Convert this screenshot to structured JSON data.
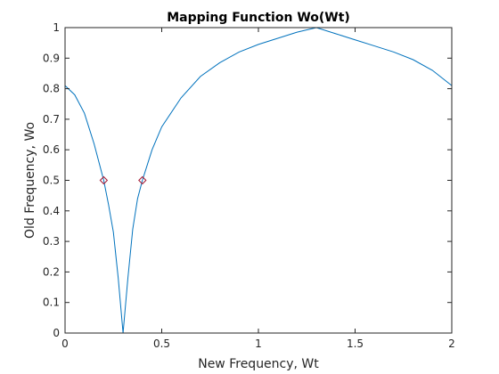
{
  "chart_data": {
    "type": "line",
    "title": "Mapping Function Wo(Wt)",
    "xlabel": "New Frequency, Wt",
    "ylabel": "Old Frequency, Wo",
    "xlim": [
      0,
      2
    ],
    "ylim": [
      0,
      1
    ],
    "x_ticks": [
      0,
      0.5,
      1,
      1.5,
      2
    ],
    "x_tick_labels": [
      "0",
      "0.5",
      "1",
      "1.5",
      "2"
    ],
    "y_ticks": [
      0,
      0.1,
      0.2,
      0.3,
      0.4,
      0.5,
      0.6,
      0.7,
      0.8,
      0.9,
      1
    ],
    "y_tick_labels": [
      "0",
      "0.1",
      "0.2",
      "0.3",
      "0.4",
      "0.5",
      "0.6",
      "0.7",
      "0.8",
      "0.9",
      "1"
    ],
    "grid": false,
    "series": [
      {
        "color": "#0072BD",
        "style": "line",
        "points": [
          [
            0,
            0.81
          ],
          [
            0.05,
            0.78
          ],
          [
            0.1,
            0.72
          ],
          [
            0.15,
            0.62
          ],
          [
            0.2,
            0.5
          ],
          [
            0.225,
            0.42
          ],
          [
            0.25,
            0.33
          ],
          [
            0.275,
            0.18
          ],
          [
            0.3,
            0.0
          ],
          [
            0.325,
            0.18
          ],
          [
            0.35,
            0.34
          ],
          [
            0.375,
            0.44
          ],
          [
            0.4,
            0.5
          ],
          [
            0.45,
            0.6
          ],
          [
            0.5,
            0.675
          ],
          [
            0.6,
            0.77
          ],
          [
            0.7,
            0.84
          ],
          [
            0.8,
            0.885
          ],
          [
            0.9,
            0.92
          ],
          [
            1.0,
            0.945
          ],
          [
            1.1,
            0.965
          ],
          [
            1.2,
            0.985
          ],
          [
            1.3,
            1.0
          ],
          [
            1.4,
            0.98
          ],
          [
            1.5,
            0.96
          ],
          [
            1.6,
            0.94
          ],
          [
            1.7,
            0.92
          ],
          [
            1.8,
            0.895
          ],
          [
            1.9,
            0.86
          ],
          [
            2.0,
            0.81
          ]
        ]
      },
      {
        "color": "#A2142F",
        "style": "marker-diamond",
        "points": [
          [
            0.2,
            0.5
          ],
          [
            0.4,
            0.5
          ]
        ]
      }
    ]
  }
}
